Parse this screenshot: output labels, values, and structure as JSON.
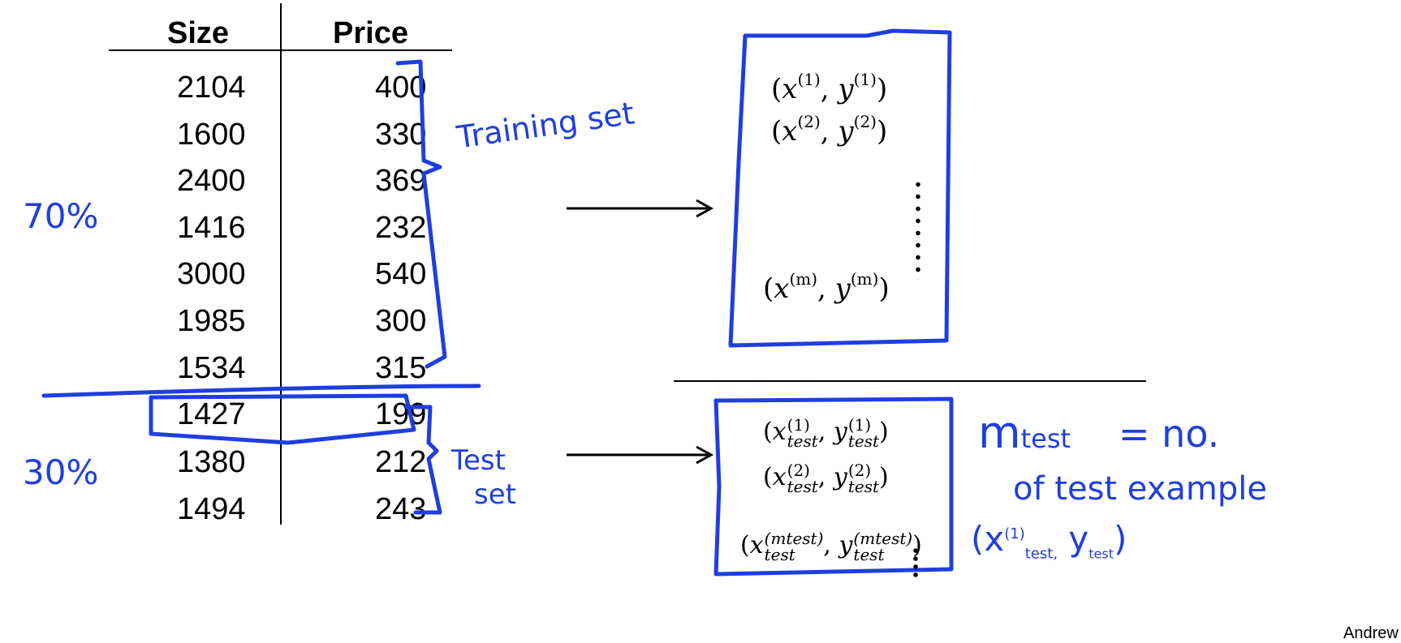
{
  "table": {
    "headers": {
      "size": "Size",
      "price": "Price"
    },
    "training_rows": [
      {
        "size": "2104",
        "price": "400"
      },
      {
        "size": "1600",
        "price": "330"
      },
      {
        "size": "2400",
        "price": "369"
      },
      {
        "size": "1416",
        "price": "232"
      },
      {
        "size": "3000",
        "price": "540"
      },
      {
        "size": "1985",
        "price": "300"
      },
      {
        "size": "1534",
        "price": "315"
      }
    ],
    "test_rows": [
      {
        "size": "1427",
        "price": "199"
      },
      {
        "size": "1380",
        "price": "212"
      },
      {
        "size": "1494",
        "price": "243"
      }
    ]
  },
  "annotations": {
    "training_set": "Training set",
    "test_set_line1": "Test",
    "test_set_line2": "set",
    "percent_training": "70%",
    "percent_test": "30%",
    "mtest_symbol": "m",
    "mtest_sub": "test",
    "mtest_definition_line1": "= no.",
    "mtest_definition_line2": "of test example",
    "handwritten_pair_x": "(x",
    "handwritten_pair_sup": "(1)",
    "handwritten_pair_sub": "test,",
    "handwritten_pair_y": "y",
    "handwritten_pair_ysub": "test",
    "handwritten_pair_close": ")"
  },
  "training_box": {
    "open": "(",
    "x": "x",
    "y": "y",
    "sep": ", ",
    "close": ")",
    "items": [
      "(1)",
      "(2)"
    ],
    "last": "(m)"
  },
  "test_box": {
    "open": "(",
    "x": "x",
    "y": "y",
    "sep": ", ",
    "close": ")",
    "sub": "test",
    "items": [
      "(1)",
      "(2)"
    ],
    "last": "(mtest)"
  },
  "credit": "Andrew",
  "colors": {
    "ink": "#1f3ee0",
    "text": "#000000"
  }
}
